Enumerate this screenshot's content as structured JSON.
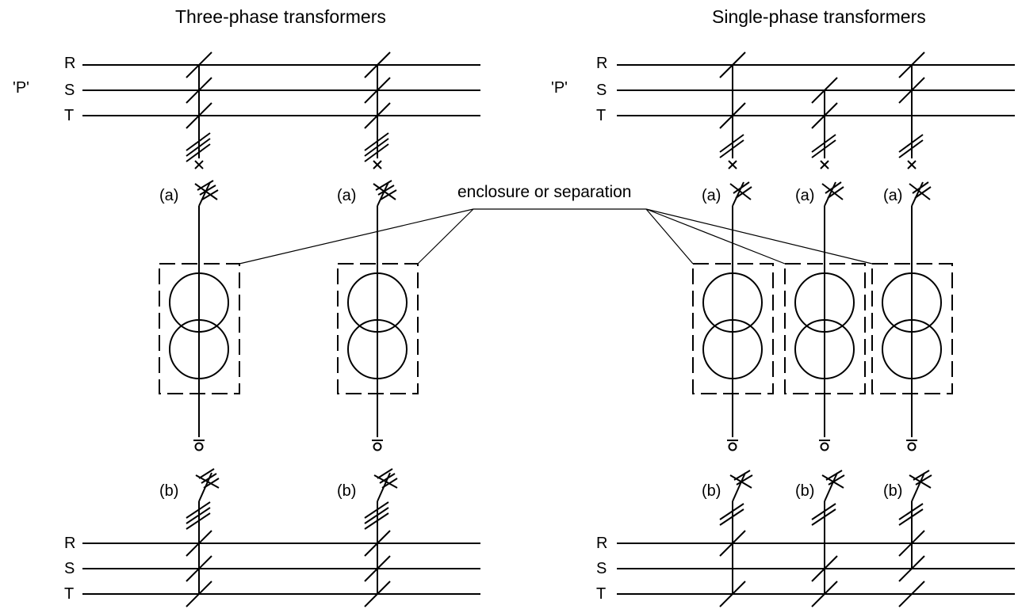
{
  "titles": {
    "three_phase": "Three-phase transformers",
    "single_phase": "Single-phase transformers"
  },
  "bus_labels": {
    "P": "'P'",
    "R": "R",
    "S": "S",
    "T": "T"
  },
  "switch_labels": {
    "a": "(a)",
    "b": "(b)"
  },
  "annotation": "enclosure or separation"
}
